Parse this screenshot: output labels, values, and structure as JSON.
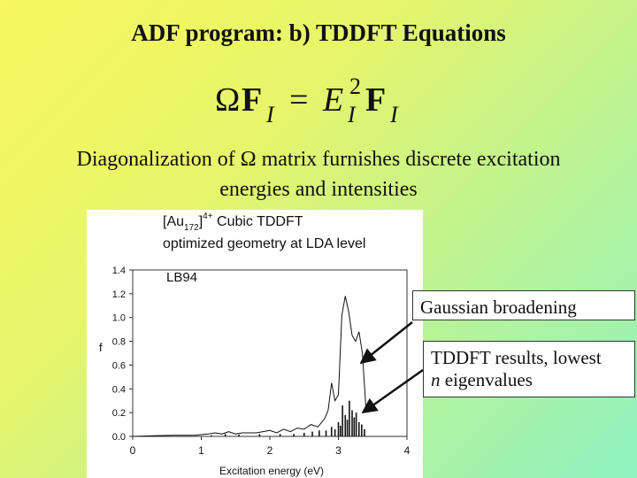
{
  "slide": {
    "title": "ADF program: b) TDDFT Equations",
    "equation": {
      "omega": "Ω",
      "f_left": "F",
      "sub_left": "I",
      "equals": "=",
      "e": "E",
      "sub_e": "I",
      "sup_e": "2",
      "f_right": "F",
      "sub_right": "I"
    },
    "description_line1": "Diagonalization of Ω matrix furnishes discrete excitation",
    "description_line2": "energies and intensities",
    "callout_gaussian": "Gaussian broadening",
    "callout_tddft_line1": "TDDFT results, lowest",
    "callout_tddft_n": "n",
    "callout_tddft_rest": " eigenvalues"
  },
  "chart_data": {
    "type": "line",
    "title_line1_prefix": "[Au",
    "title_sub": "172",
    "title_sup": "4+",
    "title_line1_suffix": " Cubic TDDFT",
    "title_line2": "optimized geometry at LDA level",
    "annotation": "LB94",
    "xlabel": "Excitation energy (eV)",
    "ylabel": "f",
    "xlim": [
      0,
      4
    ],
    "ylim": [
      0,
      1.4
    ],
    "xticks": [
      "0",
      "1",
      "2",
      "3",
      "4"
    ],
    "yticks": [
      "0.0",
      "0.2",
      "0.4",
      "0.6",
      "0.8",
      "1.0",
      "1.2",
      "1.4"
    ],
    "series": [
      {
        "x": [
          0.0,
          0.3,
          0.6,
          0.9,
          1.1,
          1.2,
          1.3,
          1.4,
          1.5,
          1.6,
          1.8,
          1.9,
          2.0,
          2.1,
          2.2,
          2.3,
          2.4,
          2.5,
          2.6,
          2.7,
          2.8,
          2.85,
          2.9,
          2.95,
          3.0,
          3.05,
          3.1,
          3.15,
          3.2,
          3.25,
          3.3,
          3.35,
          3.4
        ],
        "y": [
          0.0,
          0.005,
          0.01,
          0.01,
          0.02,
          0.03,
          0.02,
          0.04,
          0.02,
          0.03,
          0.03,
          0.04,
          0.05,
          0.03,
          0.06,
          0.04,
          0.07,
          0.06,
          0.1,
          0.08,
          0.15,
          0.22,
          0.45,
          0.3,
          0.35,
          1.02,
          1.18,
          1.05,
          0.85,
          0.8,
          0.88,
          0.7,
          0.25
        ]
      },
      {
        "type": "stick",
        "x": [
          1.15,
          1.35,
          1.55,
          1.85,
          2.15,
          2.35,
          2.5,
          2.62,
          2.72,
          2.82,
          2.9,
          2.95,
          3.0,
          3.03,
          3.06,
          3.1,
          3.13,
          3.16,
          3.2,
          3.23,
          3.26,
          3.3,
          3.34,
          3.38
        ],
        "y": [
          0.01,
          0.02,
          0.015,
          0.02,
          0.02,
          0.02,
          0.03,
          0.04,
          0.05,
          0.05,
          0.08,
          0.06,
          0.12,
          0.09,
          0.26,
          0.18,
          0.14,
          0.3,
          0.22,
          0.16,
          0.2,
          0.12,
          0.1,
          0.06
        ]
      }
    ]
  }
}
